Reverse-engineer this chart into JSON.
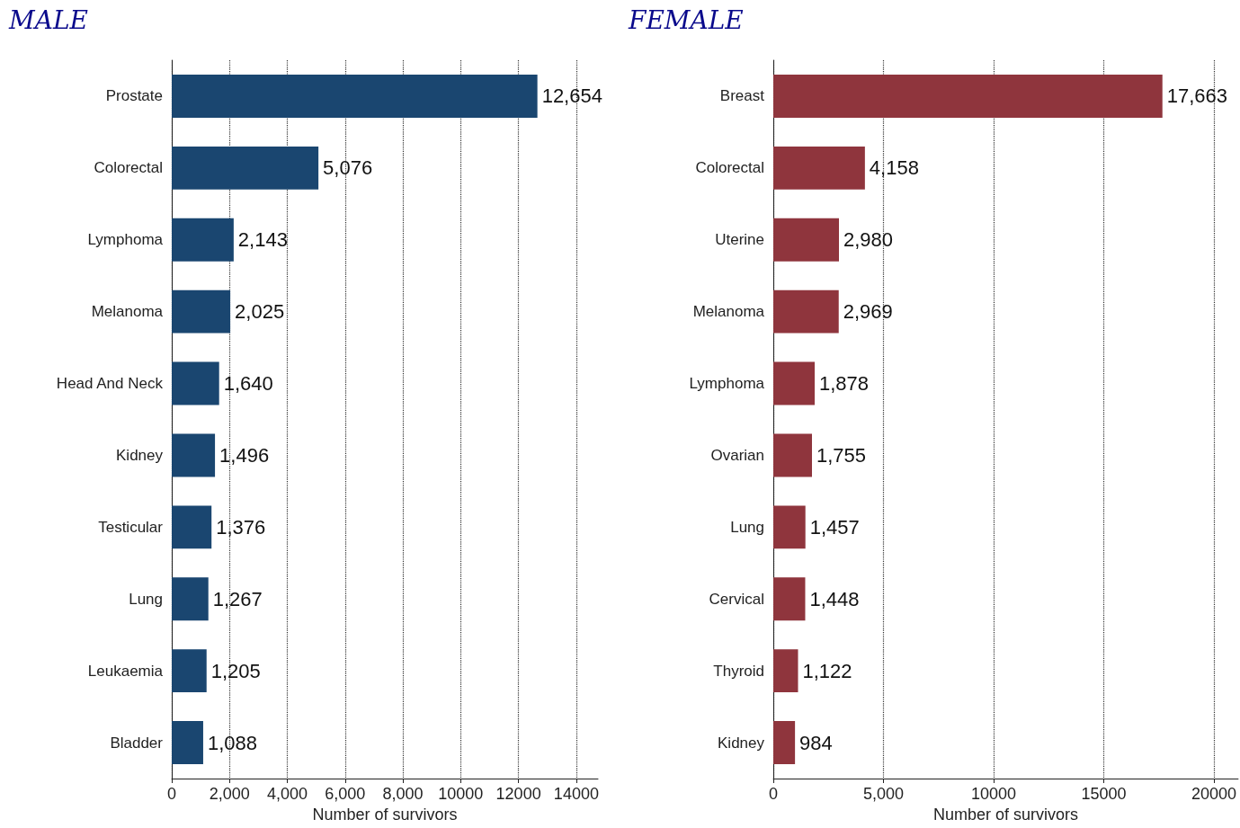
{
  "chart_data": [
    {
      "type": "bar",
      "title": "MALE",
      "orientation": "horizontal",
      "xlabel": "Number of survivors",
      "categories": [
        "Prostate",
        "Colorectal",
        "Lymphoma",
        "Melanoma",
        "Head And Neck",
        "Kidney",
        "Testicular",
        "Lung",
        "Leukaemia",
        "Bladder"
      ],
      "values": [
        12654,
        5076,
        2143,
        2025,
        1640,
        1496,
        1376,
        1267,
        1205,
        1088
      ],
      "value_labels": [
        "12,654",
        "5,076",
        "2,143",
        "2,025",
        "1,640",
        "1,496",
        "1,376",
        "1,267",
        "1,205",
        "1,088"
      ],
      "color": "#1a4670",
      "xlim": [
        0,
        14750
      ],
      "xticks": [
        0,
        {
          "value": 2000,
          "label": "2,000"
        },
        {
          "value": 4000,
          "label": "4,000"
        },
        {
          "value": 6000,
          "label": "6,000"
        },
        {
          "value": 8000,
          "label": "8,000"
        },
        10000,
        12000,
        14000
      ],
      "grid": "x"
    },
    {
      "type": "bar",
      "title": "FEMALE",
      "orientation": "horizontal",
      "xlabel": "Number of survivors",
      "categories": [
        "Breast",
        "Colorectal",
        "Uterine",
        "Melanoma",
        "Lymphoma",
        "Ovarian",
        "Lung",
        "Cervical",
        "Thyroid",
        "Kidney"
      ],
      "values": [
        17663,
        4158,
        2980,
        2969,
        1878,
        1755,
        1457,
        1448,
        1122,
        984
      ],
      "value_labels": [
        "17,663",
        "4,158",
        "2,980",
        "2,969",
        "1,878",
        "1,755",
        "1,457",
        "1,448",
        "1,122",
        "984"
      ],
      "color": "#8f353d",
      "xlim": [
        0,
        21100
      ],
      "xticks": [
        0,
        {
          "value": 5000,
          "label": "5,000"
        },
        10000,
        15000,
        20000
      ],
      "grid": "x"
    }
  ]
}
